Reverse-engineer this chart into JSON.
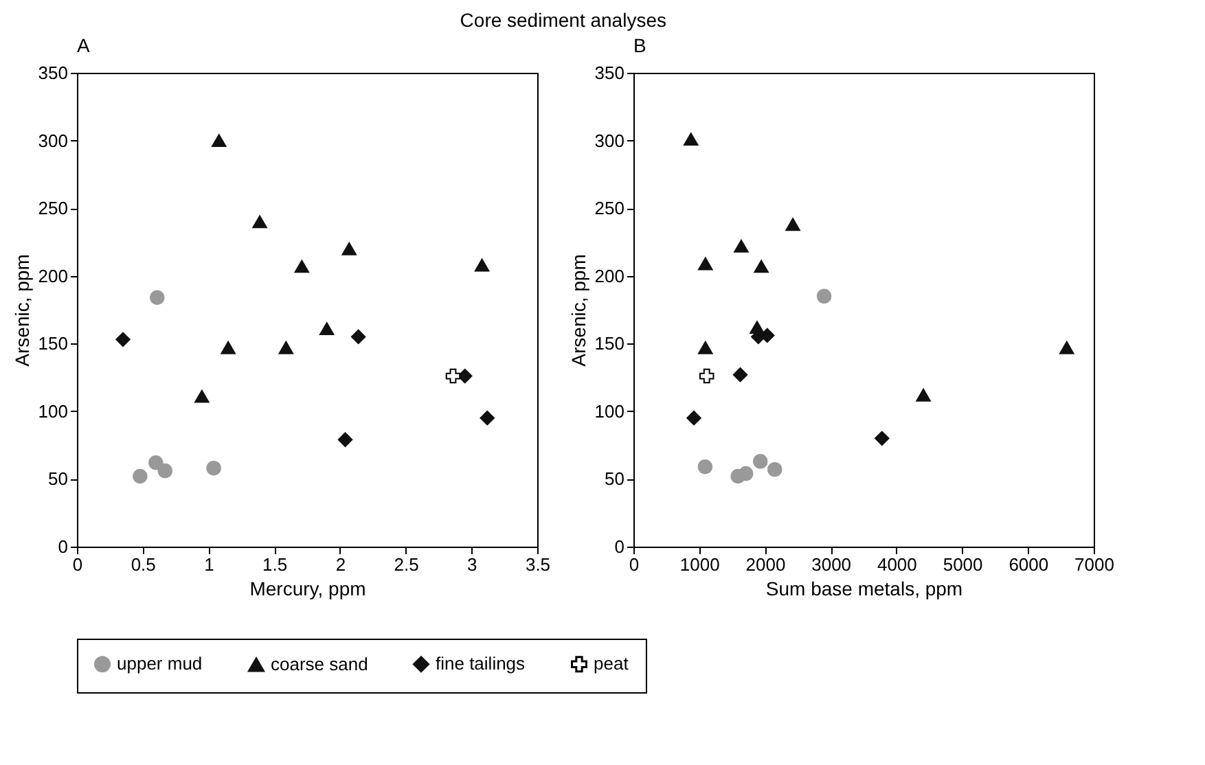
{
  "chart_data": [
    {
      "type": "scatter",
      "title": "Core sediment analyses",
      "subtitle": "A",
      "xlabel": "Mercury, ppm",
      "ylabel": "Arsenic, ppm",
      "xlim": [
        0,
        3.5
      ],
      "ylim": [
        0,
        350
      ],
      "xticks": [
        0,
        0.5,
        1,
        1.5,
        2,
        2.5,
        3,
        3.5
      ],
      "yticks": [
        0,
        50,
        100,
        150,
        200,
        250,
        300,
        350
      ],
      "legend": "bottom",
      "series": [
        {
          "name": "upper mud",
          "color": "#999999",
          "marker": "circle",
          "x": [
            0.48,
            0.6,
            0.67,
            1.04,
            0.61
          ],
          "values": [
            52,
            62,
            56,
            58,
            184
          ]
        },
        {
          "name": "coarse sand",
          "color": "#111111",
          "marker": "triangle",
          "x": [
            1.08,
            1.39,
            2.07,
            1.71,
            3.08,
            1.9,
            1.15,
            1.59,
            0.95
          ],
          "values": [
            300,
            240,
            220,
            207,
            208,
            161,
            147,
            147,
            111
          ]
        },
        {
          "name": "fine tailings",
          "color": "#111111",
          "marker": "diamond",
          "x": [
            0.35,
            2.14,
            2.95,
            3.12,
            2.04
          ],
          "values": [
            153,
            155,
            126,
            95,
            79
          ]
        },
        {
          "name": "peat",
          "color": "#ffffff",
          "marker": "cross",
          "x": [
            2.86
          ],
          "values": [
            126
          ]
        }
      ]
    },
    {
      "type": "scatter",
      "subtitle": "B",
      "xlabel": "Sum base metals, ppm",
      "ylabel": "Arsenic, ppm",
      "xlim": [
        0,
        7000
      ],
      "ylim": [
        0,
        350
      ],
      "xticks": [
        0,
        1000,
        2000,
        3000,
        4000,
        5000,
        6000,
        7000
      ],
      "yticks": [
        0,
        50,
        100,
        150,
        200,
        250,
        300,
        350
      ],
      "legend": "bottom",
      "series": [
        {
          "name": "upper mud",
          "color": "#999999",
          "marker": "circle",
          "x": [
            1090,
            1590,
            1710,
            1930,
            2150,
            2900
          ],
          "values": [
            59,
            52,
            54,
            63,
            57,
            185
          ]
        },
        {
          "name": "coarse sand",
          "color": "#111111",
          "marker": "triangle",
          "x": [
            875,
            2425,
            1640,
            1095,
            1945,
            1095,
            1880,
            6590,
            4410
          ],
          "values": [
            301,
            238,
            222,
            209,
            207,
            147,
            162,
            147,
            112
          ]
        },
        {
          "name": "fine tailings",
          "color": "#111111",
          "marker": "diamond",
          "x": [
            920,
            1625,
            1900,
            2035,
            3780
          ],
          "values": [
            95,
            127,
            155,
            156,
            80
          ]
        },
        {
          "name": "peat",
          "color": "#ffffff",
          "marker": "cross",
          "x": [
            1115
          ],
          "values": [
            126
          ]
        }
      ]
    }
  ]
}
